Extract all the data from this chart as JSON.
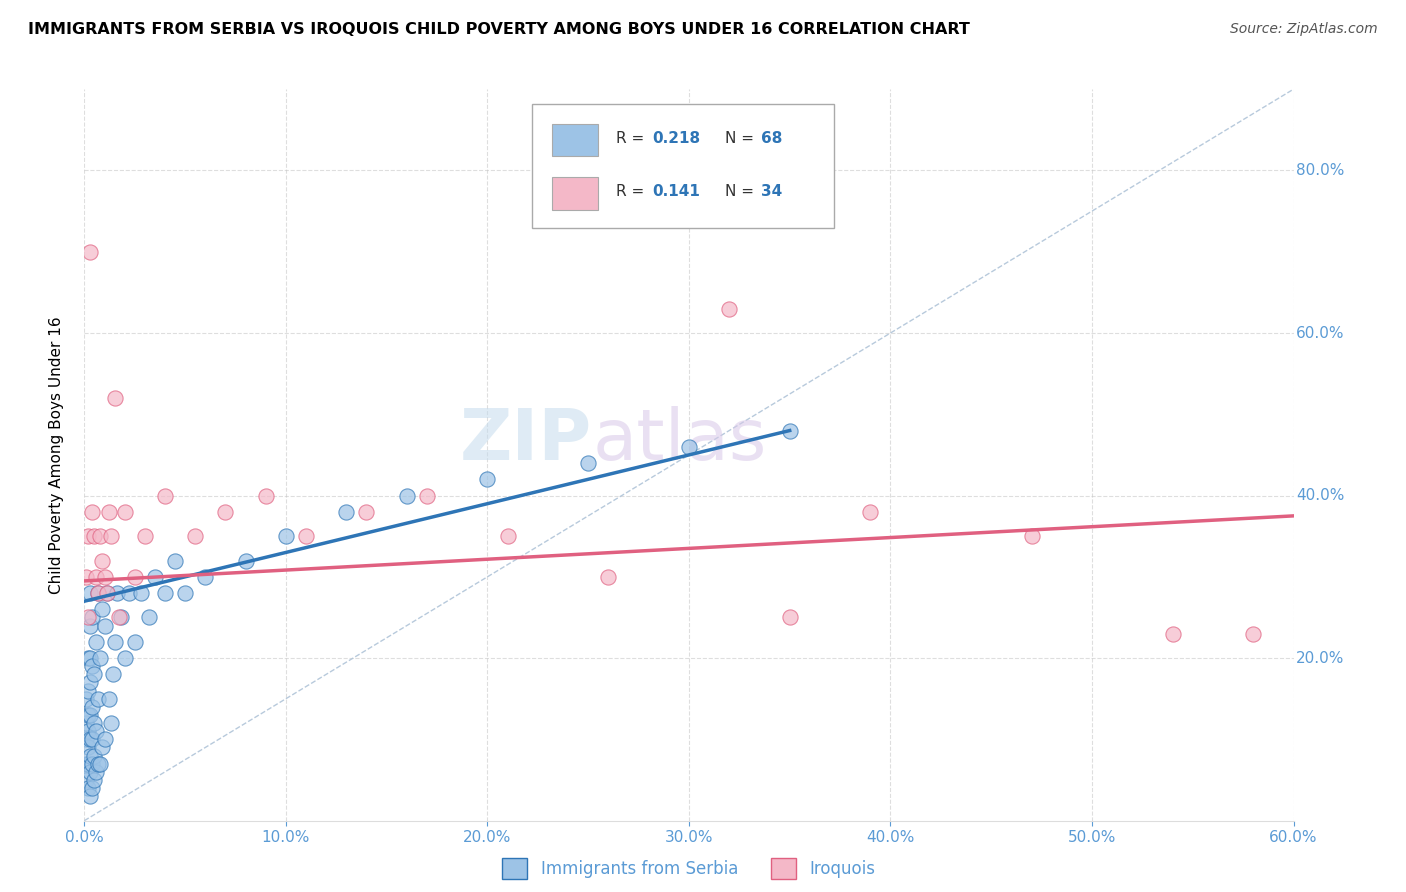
{
  "title": "IMMIGRANTS FROM SERBIA VS IROQUOIS CHILD POVERTY AMONG BOYS UNDER 16 CORRELATION CHART",
  "source": "Source: ZipAtlas.com",
  "ylabel": "Child Poverty Among Boys Under 16",
  "xlim": [
    0.0,
    0.6
  ],
  "ylim": [
    0.0,
    0.9
  ],
  "xticks": [
    0.0,
    0.1,
    0.2,
    0.3,
    0.4,
    0.5,
    0.6
  ],
  "xticklabels": [
    "0.0%",
    "10.0%",
    "20.0%",
    "30.0%",
    "40.0%",
    "50.0%",
    "60.0%"
  ],
  "yticks": [
    0.2,
    0.4,
    0.6,
    0.8
  ],
  "yticklabels": [
    "20.0%",
    "40.0%",
    "60.0%",
    "80.0%"
  ],
  "right_ytick_color": "#5b9bd5",
  "tick_color": "#5b9bd5",
  "legend_label_blue": "Immigrants from Serbia",
  "legend_label_pink": "Iroquois",
  "blue_color": "#9dc3e6",
  "pink_color": "#f4b8c8",
  "blue_edge_color": "#2e75b6",
  "pink_edge_color": "#e06080",
  "blue_line_color": "#2e75b6",
  "pink_line_color": "#e06080",
  "watermark_zip": "ZIP",
  "watermark_atlas": "atlas",
  "blue_scatter_x": [
    0.001,
    0.001,
    0.001,
    0.001,
    0.001,
    0.002,
    0.002,
    0.002,
    0.002,
    0.002,
    0.002,
    0.002,
    0.003,
    0.003,
    0.003,
    0.003,
    0.003,
    0.003,
    0.003,
    0.003,
    0.003,
    0.004,
    0.004,
    0.004,
    0.004,
    0.004,
    0.004,
    0.005,
    0.005,
    0.005,
    0.005,
    0.006,
    0.006,
    0.006,
    0.007,
    0.007,
    0.007,
    0.008,
    0.008,
    0.009,
    0.009,
    0.01,
    0.01,
    0.011,
    0.012,
    0.013,
    0.014,
    0.015,
    0.016,
    0.018,
    0.02,
    0.022,
    0.025,
    0.028,
    0.032,
    0.035,
    0.04,
    0.045,
    0.05,
    0.06,
    0.08,
    0.1,
    0.13,
    0.16,
    0.2,
    0.25,
    0.3,
    0.35
  ],
  "blue_scatter_y": [
    0.05,
    0.07,
    0.1,
    0.12,
    0.15,
    0.04,
    0.07,
    0.09,
    0.11,
    0.13,
    0.16,
    0.2,
    0.03,
    0.06,
    0.08,
    0.1,
    0.13,
    0.17,
    0.2,
    0.24,
    0.28,
    0.04,
    0.07,
    0.1,
    0.14,
    0.19,
    0.25,
    0.05,
    0.08,
    0.12,
    0.18,
    0.06,
    0.11,
    0.22,
    0.07,
    0.15,
    0.28,
    0.07,
    0.2,
    0.09,
    0.26,
    0.1,
    0.24,
    0.28,
    0.15,
    0.12,
    0.18,
    0.22,
    0.28,
    0.25,
    0.2,
    0.28,
    0.22,
    0.28,
    0.25,
    0.3,
    0.28,
    0.32,
    0.28,
    0.3,
    0.32,
    0.35,
    0.38,
    0.4,
    0.42,
    0.44,
    0.46,
    0.48
  ],
  "pink_scatter_x": [
    0.001,
    0.002,
    0.003,
    0.004,
    0.005,
    0.006,
    0.007,
    0.008,
    0.009,
    0.01,
    0.011,
    0.012,
    0.013,
    0.015,
    0.017,
    0.02,
    0.025,
    0.03,
    0.04,
    0.055,
    0.07,
    0.09,
    0.11,
    0.14,
    0.17,
    0.21,
    0.26,
    0.32,
    0.39,
    0.47,
    0.54,
    0.58,
    0.002,
    0.35
  ],
  "pink_scatter_y": [
    0.3,
    0.35,
    0.7,
    0.38,
    0.35,
    0.3,
    0.28,
    0.35,
    0.32,
    0.3,
    0.28,
    0.38,
    0.35,
    0.52,
    0.25,
    0.38,
    0.3,
    0.35,
    0.4,
    0.35,
    0.38,
    0.4,
    0.35,
    0.38,
    0.4,
    0.35,
    0.3,
    0.63,
    0.38,
    0.35,
    0.23,
    0.23,
    0.25,
    0.25
  ],
  "blue_trendline_x": [
    0.0,
    0.35
  ],
  "blue_trendline_y": [
    0.27,
    0.48
  ],
  "pink_trendline_x": [
    0.0,
    0.6
  ],
  "pink_trendline_y": [
    0.295,
    0.375
  ],
  "diag_line_x": [
    0.0,
    0.6
  ],
  "diag_line_y": [
    0.0,
    0.9
  ],
  "background_color": "#ffffff",
  "grid_color": "#c8c8c8"
}
